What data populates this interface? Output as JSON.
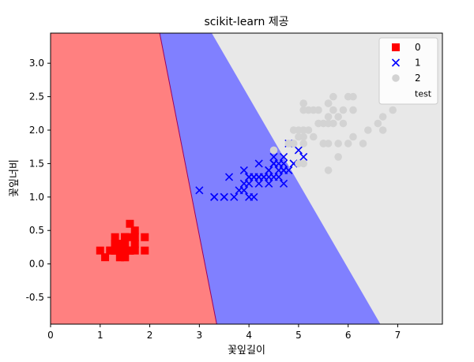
{
  "chart_data": {
    "type": "scatter",
    "title": "scikit-learn 제공",
    "xlabel": "꽃잎길이",
    "ylabel": "꽃잎너비",
    "xlim": [
      0,
      7.9
    ],
    "ylim": [
      -0.9,
      3.45
    ],
    "xticks": [
      "0",
      "1",
      "2",
      "3",
      "4",
      "5",
      "6",
      "7"
    ],
    "yticks": [
      "-0.5",
      "0.0",
      "0.5",
      "1.0",
      "1.5",
      "2.0",
      "2.5",
      "3.0"
    ],
    "grid": false,
    "legend_position": "top-right",
    "regions": [
      {
        "name": "0",
        "color": "#ff8080"
      },
      {
        "name": "1",
        "color": "#8080ff"
      },
      {
        "name": "2",
        "color": "#e8e8e8"
      }
    ],
    "boundaries": [
      {
        "x_top": 2.2,
        "x_bottom": 3.35
      },
      {
        "x_top": 3.25,
        "x_bottom": 6.65
      }
    ],
    "series": [
      {
        "name": "0",
        "marker": "square",
        "color": "#ff0000",
        "points": [
          [
            1.4,
            0.2
          ],
          [
            1.4,
            0.2
          ],
          [
            1.3,
            0.2
          ],
          [
            1.5,
            0.2
          ],
          [
            1.4,
            0.2
          ],
          [
            1.7,
            0.4
          ],
          [
            1.4,
            0.3
          ],
          [
            1.5,
            0.2
          ],
          [
            1.4,
            0.2
          ],
          [
            1.5,
            0.1
          ],
          [
            1.5,
            0.2
          ],
          [
            1.6,
            0.2
          ],
          [
            1.4,
            0.1
          ],
          [
            1.1,
            0.1
          ],
          [
            1.2,
            0.2
          ],
          [
            1.5,
            0.4
          ],
          [
            1.3,
            0.4
          ],
          [
            1.4,
            0.3
          ],
          [
            1.7,
            0.3
          ],
          [
            1.5,
            0.3
          ],
          [
            1.7,
            0.2
          ],
          [
            1.5,
            0.4
          ],
          [
            1.0,
            0.2
          ],
          [
            1.7,
            0.5
          ],
          [
            1.9,
            0.2
          ],
          [
            1.6,
            0.2
          ],
          [
            1.6,
            0.4
          ],
          [
            1.5,
            0.2
          ],
          [
            1.4,
            0.2
          ],
          [
            1.6,
            0.2
          ],
          [
            1.6,
            0.2
          ],
          [
            1.5,
            0.4
          ],
          [
            1.5,
            0.1
          ],
          [
            1.4,
            0.2
          ],
          [
            1.5,
            0.2
          ],
          [
            1.2,
            0.2
          ],
          [
            1.3,
            0.2
          ],
          [
            1.4,
            0.1
          ],
          [
            1.3,
            0.2
          ],
          [
            1.5,
            0.2
          ],
          [
            1.3,
            0.3
          ],
          [
            1.3,
            0.3
          ],
          [
            1.3,
            0.2
          ],
          [
            1.6,
            0.6
          ],
          [
            1.9,
            0.4
          ],
          [
            1.4,
            0.3
          ],
          [
            1.6,
            0.2
          ],
          [
            1.4,
            0.2
          ],
          [
            1.5,
            0.2
          ],
          [
            1.4,
            0.2
          ]
        ]
      },
      {
        "name": "1",
        "marker": "x",
        "color": "#0000ff",
        "points": [
          [
            4.7,
            1.4
          ],
          [
            4.5,
            1.5
          ],
          [
            4.9,
            1.5
          ],
          [
            4.0,
            1.3
          ],
          [
            4.6,
            1.5
          ],
          [
            4.5,
            1.3
          ],
          [
            4.7,
            1.6
          ],
          [
            3.3,
            1.0
          ],
          [
            4.6,
            1.3
          ],
          [
            3.9,
            1.4
          ],
          [
            3.5,
            1.0
          ],
          [
            4.2,
            1.5
          ],
          [
            4.0,
            1.0
          ],
          [
            4.7,
            1.4
          ],
          [
            3.6,
            1.3
          ],
          [
            4.4,
            1.4
          ],
          [
            4.5,
            1.5
          ],
          [
            4.1,
            1.0
          ],
          [
            4.5,
            1.5
          ],
          [
            3.9,
            1.1
          ],
          [
            4.8,
            1.8
          ],
          [
            4.0,
            1.3
          ],
          [
            4.9,
            1.5
          ],
          [
            4.7,
            1.2
          ],
          [
            4.3,
            1.3
          ],
          [
            4.4,
            1.4
          ],
          [
            4.8,
            1.4
          ],
          [
            5.0,
            1.7
          ],
          [
            4.5,
            1.5
          ],
          [
            3.5,
            1.0
          ],
          [
            3.8,
            1.1
          ],
          [
            3.7,
            1.0
          ],
          [
            3.9,
            1.2
          ],
          [
            5.1,
            1.6
          ],
          [
            4.5,
            1.5
          ],
          [
            4.5,
            1.6
          ],
          [
            4.7,
            1.5
          ],
          [
            4.4,
            1.3
          ],
          [
            4.1,
            1.3
          ],
          [
            4.0,
            1.3
          ],
          [
            4.4,
            1.2
          ],
          [
            4.6,
            1.4
          ],
          [
            4.0,
            1.2
          ],
          [
            3.3,
            1.0
          ],
          [
            4.2,
            1.3
          ],
          [
            4.2,
            1.2
          ],
          [
            4.2,
            1.3
          ],
          [
            4.3,
            1.3
          ],
          [
            3.0,
            1.1
          ],
          [
            4.1,
            1.3
          ]
        ]
      },
      {
        "name": "2",
        "marker": "circle",
        "color": "#d3d3d3",
        "points": [
          [
            6.0,
            2.5
          ],
          [
            5.1,
            1.9
          ],
          [
            5.9,
            2.1
          ],
          [
            5.6,
            1.8
          ],
          [
            5.8,
            2.2
          ],
          [
            6.6,
            2.1
          ],
          [
            4.5,
            1.7
          ],
          [
            6.3,
            1.8
          ],
          [
            5.8,
            1.8
          ],
          [
            6.1,
            2.5
          ],
          [
            5.1,
            2.0
          ],
          [
            5.3,
            1.9
          ],
          [
            5.5,
            2.1
          ],
          [
            5.0,
            2.0
          ],
          [
            5.1,
            2.4
          ],
          [
            5.3,
            2.3
          ],
          [
            5.5,
            1.8
          ],
          [
            6.7,
            2.2
          ],
          [
            6.9,
            2.3
          ],
          [
            5.0,
            1.5
          ],
          [
            5.7,
            2.3
          ],
          [
            4.9,
            2.0
          ],
          [
            6.7,
            2.0
          ],
          [
            4.9,
            1.8
          ],
          [
            5.7,
            2.1
          ],
          [
            6.0,
            1.8
          ],
          [
            4.8,
            1.8
          ],
          [
            4.9,
            1.8
          ],
          [
            5.6,
            2.1
          ],
          [
            5.8,
            1.6
          ],
          [
            6.1,
            1.9
          ],
          [
            6.4,
            2.0
          ],
          [
            5.6,
            2.2
          ],
          [
            5.1,
            1.5
          ],
          [
            5.6,
            1.4
          ],
          [
            6.1,
            2.3
          ],
          [
            5.6,
            2.4
          ],
          [
            5.5,
            1.8
          ],
          [
            4.8,
            1.8
          ],
          [
            5.4,
            2.1
          ],
          [
            5.6,
            2.4
          ],
          [
            5.1,
            2.3
          ],
          [
            5.9,
            2.3
          ],
          [
            5.7,
            2.5
          ],
          [
            5.2,
            2.3
          ],
          [
            5.0,
            1.9
          ],
          [
            5.2,
            2.0
          ],
          [
            5.4,
            2.3
          ],
          [
            5.1,
            1.8
          ]
        ]
      }
    ],
    "test_series": {
      "name": "test"
    }
  }
}
